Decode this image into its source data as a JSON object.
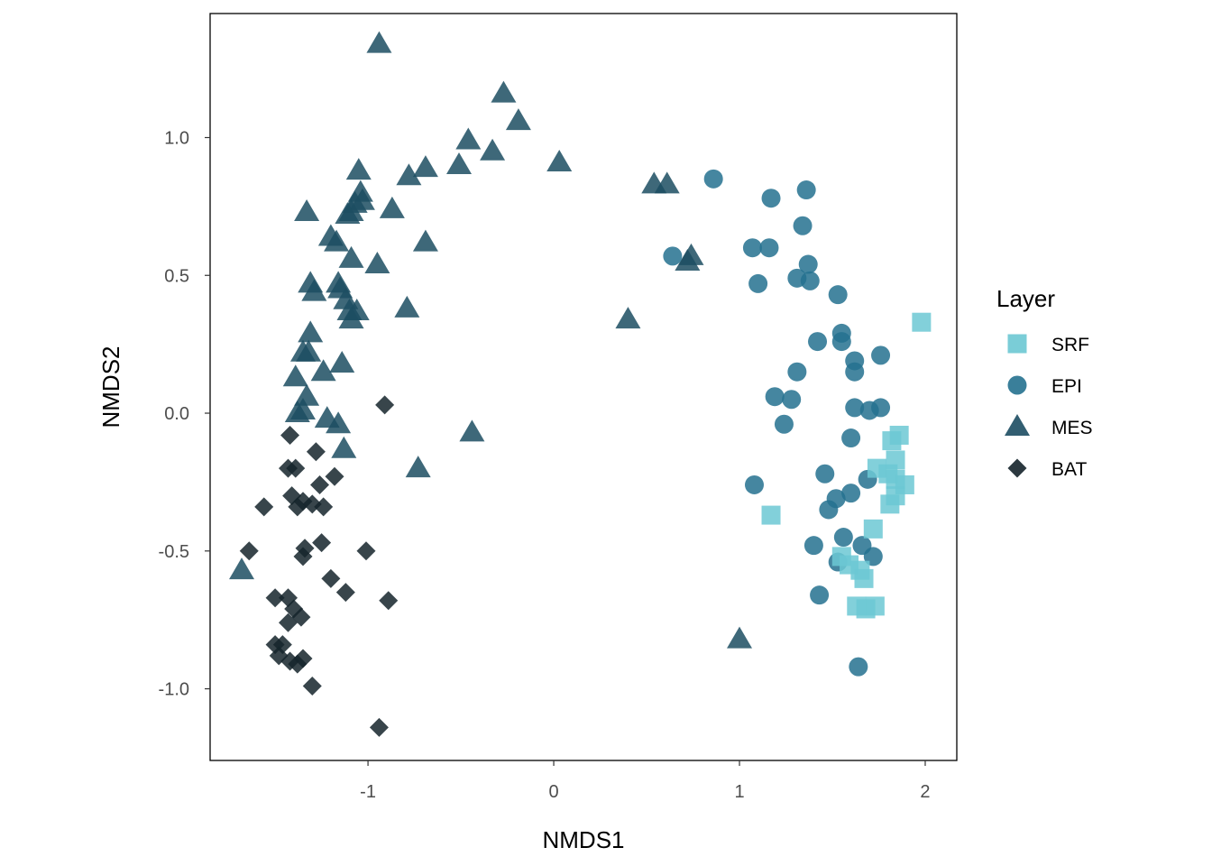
{
  "chart_data": {
    "type": "scatter",
    "xlabel": "NMDS1",
    "ylabel": "NMDS2",
    "xlim": [
      -1.85,
      2.17
    ],
    "ylim": [
      -1.26,
      1.45
    ],
    "xticks": [
      {
        "v": -1,
        "label": "-1"
      },
      {
        "v": 0,
        "label": "0"
      },
      {
        "v": 1,
        "label": "1"
      },
      {
        "v": 2,
        "label": "2"
      }
    ],
    "yticks": [
      {
        "v": -1.0,
        "label": "-1.0"
      },
      {
        "v": -0.5,
        "label": "-0.5"
      },
      {
        "v": 0.0,
        "label": "0.0"
      },
      {
        "v": 0.5,
        "label": "0.5"
      },
      {
        "v": 1.0,
        "label": "1.0"
      }
    ],
    "grid": false,
    "legend": {
      "title": "Layer",
      "position": "right"
    },
    "series": [
      {
        "name": "SRF",
        "shape": "square",
        "color": "#6cc8d3",
        "points": [
          [
            1.98,
            0.33
          ],
          [
            1.86,
            -0.08
          ],
          [
            1.82,
            -0.1
          ],
          [
            1.84,
            -0.17
          ],
          [
            1.74,
            -0.2
          ],
          [
            1.8,
            -0.22
          ],
          [
            1.84,
            -0.24
          ],
          [
            1.89,
            -0.26
          ],
          [
            1.84,
            -0.3
          ],
          [
            1.81,
            -0.33
          ],
          [
            1.72,
            -0.42
          ],
          [
            1.17,
            -0.37
          ],
          [
            1.55,
            -0.52
          ],
          [
            1.59,
            -0.55
          ],
          [
            1.65,
            -0.57
          ],
          [
            1.67,
            -0.6
          ],
          [
            1.63,
            -0.7
          ],
          [
            1.73,
            -0.7
          ],
          [
            1.68,
            -0.71
          ]
        ]
      },
      {
        "name": "EPI",
        "shape": "circle",
        "color": "#25718f",
        "points": [
          [
            0.86,
            0.85
          ],
          [
            1.17,
            0.78
          ],
          [
            1.36,
            0.81
          ],
          [
            1.34,
            0.68
          ],
          [
            1.07,
            0.6
          ],
          [
            1.16,
            0.6
          ],
          [
            0.64,
            0.57
          ],
          [
            1.37,
            0.54
          ],
          [
            1.1,
            0.47
          ],
          [
            1.31,
            0.49
          ],
          [
            1.38,
            0.48
          ],
          [
            1.53,
            0.43
          ],
          [
            1.55,
            0.29
          ],
          [
            1.42,
            0.26
          ],
          [
            1.55,
            0.26
          ],
          [
            1.62,
            0.19
          ],
          [
            1.76,
            0.21
          ],
          [
            1.31,
            0.15
          ],
          [
            1.62,
            0.15
          ],
          [
            1.19,
            0.06
          ],
          [
            1.28,
            0.05
          ],
          [
            1.62,
            0.02
          ],
          [
            1.7,
            0.01
          ],
          [
            1.76,
            0.02
          ],
          [
            1.24,
            -0.04
          ],
          [
            1.6,
            -0.09
          ],
          [
            1.08,
            -0.26
          ],
          [
            1.46,
            -0.22
          ],
          [
            1.6,
            -0.29
          ],
          [
            1.69,
            -0.24
          ],
          [
            1.52,
            -0.31
          ],
          [
            1.48,
            -0.35
          ],
          [
            1.56,
            -0.45
          ],
          [
            1.4,
            -0.48
          ],
          [
            1.66,
            -0.48
          ],
          [
            1.72,
            -0.52
          ],
          [
            1.53,
            -0.54
          ],
          [
            1.43,
            -0.66
          ],
          [
            1.64,
            -0.92
          ]
        ]
      },
      {
        "name": "MES",
        "shape": "triangle",
        "color": "#1c4d62",
        "points": [
          [
            -0.94,
            1.34
          ],
          [
            -0.27,
            1.16
          ],
          [
            -0.19,
            1.06
          ],
          [
            -0.46,
            0.99
          ],
          [
            -0.33,
            0.95
          ],
          [
            0.03,
            0.91
          ],
          [
            -0.51,
            0.9
          ],
          [
            -0.69,
            0.89
          ],
          [
            -0.78,
            0.86
          ],
          [
            -1.05,
            0.88
          ],
          [
            0.54,
            0.83
          ],
          [
            0.61,
            0.83
          ],
          [
            -1.04,
            0.8
          ],
          [
            -1.07,
            0.76
          ],
          [
            -1.09,
            0.73
          ],
          [
            -1.03,
            0.77
          ],
          [
            -1.11,
            0.72
          ],
          [
            -0.87,
            0.74
          ],
          [
            -1.33,
            0.73
          ],
          [
            -1.2,
            0.64
          ],
          [
            -1.17,
            0.62
          ],
          [
            -0.69,
            0.62
          ],
          [
            0.74,
            0.57
          ],
          [
            0.72,
            0.55
          ],
          [
            -1.09,
            0.56
          ],
          [
            -0.95,
            0.54
          ],
          [
            -1.31,
            0.47
          ],
          [
            -1.29,
            0.44
          ],
          [
            -1.16,
            0.47
          ],
          [
            -1.15,
            0.45
          ],
          [
            -1.12,
            0.41
          ],
          [
            -1.1,
            0.37
          ],
          [
            -1.06,
            0.37
          ],
          [
            -1.09,
            0.34
          ],
          [
            -0.79,
            0.38
          ],
          [
            0.4,
            0.34
          ],
          [
            -1.31,
            0.29
          ],
          [
            -1.35,
            0.22
          ],
          [
            -1.32,
            0.22
          ],
          [
            -1.14,
            0.18
          ],
          [
            -1.24,
            0.15
          ],
          [
            -1.39,
            0.13
          ],
          [
            -1.33,
            0.06
          ],
          [
            -1.38,
            0.0
          ],
          [
            -1.35,
            0.01
          ],
          [
            -1.22,
            -0.02
          ],
          [
            -1.16,
            -0.04
          ],
          [
            -0.44,
            -0.07
          ],
          [
            -1.13,
            -0.13
          ],
          [
            -0.73,
            -0.2
          ],
          [
            -1.68,
            -0.57
          ],
          [
            1.0,
            -0.82
          ]
        ]
      },
      {
        "name": "BAT",
        "shape": "diamond",
        "color": "#15242b",
        "points": [
          [
            -0.91,
            0.03
          ],
          [
            -1.42,
            -0.08
          ],
          [
            -1.28,
            -0.14
          ],
          [
            -1.43,
            -0.2
          ],
          [
            -1.39,
            -0.2
          ],
          [
            -1.18,
            -0.23
          ],
          [
            -1.26,
            -0.26
          ],
          [
            -1.41,
            -0.3
          ],
          [
            -1.38,
            -0.34
          ],
          [
            -1.35,
            -0.32
          ],
          [
            -1.3,
            -0.33
          ],
          [
            -1.24,
            -0.34
          ],
          [
            -1.56,
            -0.34
          ],
          [
            -1.64,
            -0.5
          ],
          [
            -1.34,
            -0.49
          ],
          [
            -1.25,
            -0.47
          ],
          [
            -1.01,
            -0.5
          ],
          [
            -1.35,
            -0.52
          ],
          [
            -1.2,
            -0.6
          ],
          [
            -1.12,
            -0.65
          ],
          [
            -0.89,
            -0.68
          ],
          [
            -1.5,
            -0.67
          ],
          [
            -1.43,
            -0.67
          ],
          [
            -1.4,
            -0.71
          ],
          [
            -1.43,
            -0.76
          ],
          [
            -1.36,
            -0.74
          ],
          [
            -1.5,
            -0.84
          ],
          [
            -1.46,
            -0.84
          ],
          [
            -1.48,
            -0.88
          ],
          [
            -1.42,
            -0.9
          ],
          [
            -1.38,
            -0.91
          ],
          [
            -1.35,
            -0.89
          ],
          [
            -1.3,
            -0.99
          ],
          [
            -0.94,
            -1.14
          ]
        ]
      }
    ]
  }
}
